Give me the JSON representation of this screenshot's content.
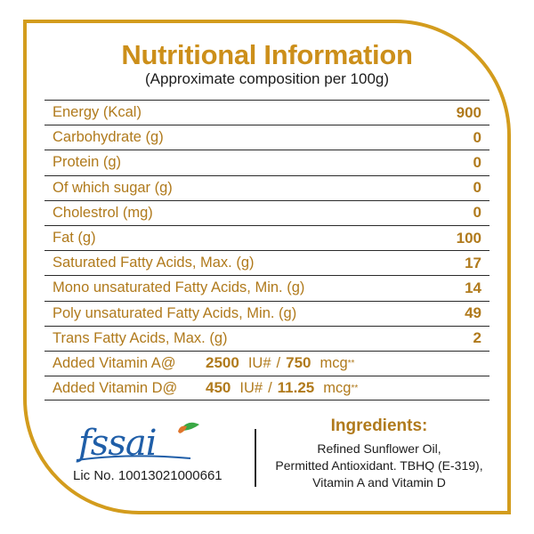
{
  "title": "Nutritional Information",
  "subtitle": "(Approximate composition per 100g)",
  "rows": [
    {
      "label": "Energy (Kcal)",
      "value": "900"
    },
    {
      "label": "Carbohydrate (g)",
      "value": "0"
    },
    {
      "label": "Protein (g)",
      "value": "0"
    },
    {
      "label": "Of which sugar (g)",
      "value": "0"
    },
    {
      "label": "Cholestrol (mg)",
      "value": "0"
    },
    {
      "label": "Fat (g)",
      "value": "100"
    },
    {
      "label": "Saturated Fatty Acids, Max. (g)",
      "value": "17"
    },
    {
      "label": "Mono unsaturated Fatty Acids, Min. (g)",
      "value": "14"
    },
    {
      "label": "Poly unsaturated Fatty Acids, Min. (g)",
      "value": "49"
    },
    {
      "label": "Trans Fatty Acids, Max. (g)",
      "value": "2"
    }
  ],
  "vitamins": [
    {
      "label": "Added Vitamin A@",
      "iu": "2500",
      "iu_unit": "IU#",
      "sep": "/",
      "mcg": "750",
      "mcg_unit": "mcg",
      "mark": "**"
    },
    {
      "label": "Added Vitamin D@",
      "iu": "450",
      "iu_unit": "IU#",
      "sep": "/",
      "mcg": "11.25",
      "mcg_unit": "mcg",
      "mark": "**"
    }
  ],
  "logo": {
    "text": "fssai"
  },
  "license": "Lic No. 10013021000661",
  "ingredients": {
    "title": "Ingredients:",
    "lines": [
      "Refined Sunflower Oil,",
      "Permitted Antioxidant. TBHQ (E-319),",
      "Vitamin A and Vitamin D"
    ]
  },
  "colors": {
    "accent": "#d39c1d",
    "text_gold": "#b07a1c",
    "logo_blue": "#1f5ea8",
    "logo_orange": "#e0752b",
    "logo_green": "#3aa845"
  }
}
